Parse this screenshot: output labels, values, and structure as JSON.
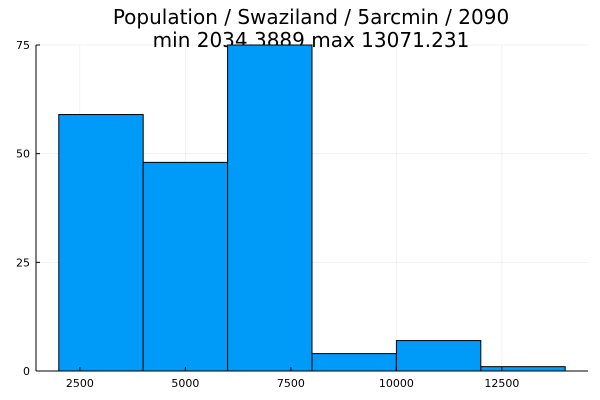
{
  "chart_data": {
    "type": "bar",
    "title_lines": [
      "Population / Swaziland / 5arcmin / 2090",
      "min 2034.3889  max 13071.231"
    ],
    "xlabel": "",
    "ylabel": "",
    "bins": [
      {
        "x0": 2000,
        "x1": 4000,
        "count": 59
      },
      {
        "x0": 4000,
        "x1": 6000,
        "count": 48
      },
      {
        "x0": 6000,
        "x1": 8000,
        "count": 75
      },
      {
        "x0": 8000,
        "x1": 10000,
        "count": 4
      },
      {
        "x0": 10000,
        "x1": 12000,
        "count": 7
      },
      {
        "x0": 12000,
        "x1": 14000,
        "count": 1
      }
    ],
    "xlim": [
      1460,
      14540
    ],
    "ylim": [
      0,
      75
    ],
    "x_ticks": [
      2500,
      5000,
      7500,
      10000,
      12500
    ],
    "y_ticks": [
      0,
      25,
      50,
      75
    ],
    "grid": true,
    "legend": "none",
    "bar_color": "#009af9",
    "edge_color": "#000000"
  }
}
